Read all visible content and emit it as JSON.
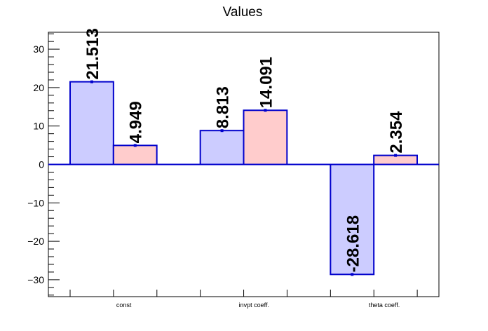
{
  "chart_data": {
    "type": "bar",
    "title": "Values",
    "categories": [
      "const",
      "invpt coeff.",
      "theta coeff."
    ],
    "series": [
      {
        "values": [
          21.513,
          8.813,
          -28.618
        ],
        "labels": [
          "21.513",
          "8.813",
          "-28.618"
        ],
        "fill": "#ccccff",
        "stroke": "#0000cc"
      },
      {
        "values": [
          4.949,
          14.091,
          2.354
        ],
        "labels": [
          "4.949",
          "14.091",
          "2.354"
        ],
        "fill": "#ffcccc",
        "stroke": "#0000cc"
      }
    ],
    "yticks": [
      -30,
      -20,
      -10,
      0,
      10,
      20,
      30
    ],
    "ytick_labels": [
      "−30",
      "−20",
      "−10",
      "0",
      "10",
      "20",
      "30"
    ],
    "ylim": [
      -34.4,
      34.4
    ],
    "xlabel": "",
    "ylabel": "",
    "grid": false,
    "zero_line_color": "#0000cc",
    "axis_color": "#000000"
  }
}
